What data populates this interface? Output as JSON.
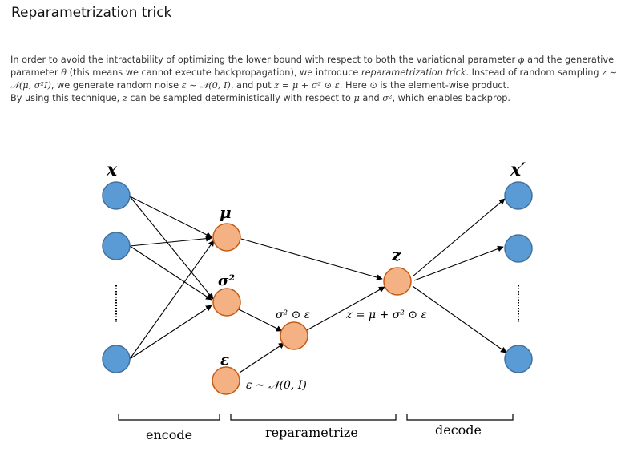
{
  "title": "Reparametrization trick",
  "paragraph": {
    "s1": "In order to avoid the intractability of optimizing the lower bound with respect to both the variational parameter ",
    "phi": "ϕ",
    "s2": " and the generative parameter ",
    "theta": "θ",
    "s3": " (this means we cannot execute backpropagation), we introduce ",
    "emph": "reparametrization trick",
    "s4": ". Instead of random sampling ",
    "z1": "z",
    "s5": " ∼ ",
    "dist1": "𝒩(μ, σ²I)",
    "s6": ", we generate random noise ",
    "eps1": "ε",
    "s7": " ∼ ",
    "dist2": "𝒩(0, I)",
    "s8": ", and put ",
    "zdef": "z = μ + σ² ⊙ ε",
    "s9": ". Here ⊙ is the element-wise product."
  },
  "paragraph2": {
    "s1": "By using this technique, ",
    "z": "z",
    "s2": " can be sampled deterministically with respect to ",
    "mu": "μ",
    "s3": " and ",
    "sigma": "σ²",
    "s4": ", which enables backprop."
  },
  "diagram": {
    "input_label": "x",
    "output_label": "x′",
    "mu_label": "μ",
    "sigma_label": "σ²",
    "epsilon_label": "ε",
    "z_label": "z",
    "product_label": "σ² ⊙ ε",
    "z_expr_label": "z = μ + σ² ⊙ ε",
    "noise_label": "ε ∼ 𝒩(0, I)",
    "section_encode": "encode",
    "section_reparam": "reparametrize",
    "section_decode": "decode"
  },
  "colors": {
    "input_node": "#5b9bd5",
    "hidden_node": "#f4b183"
  }
}
